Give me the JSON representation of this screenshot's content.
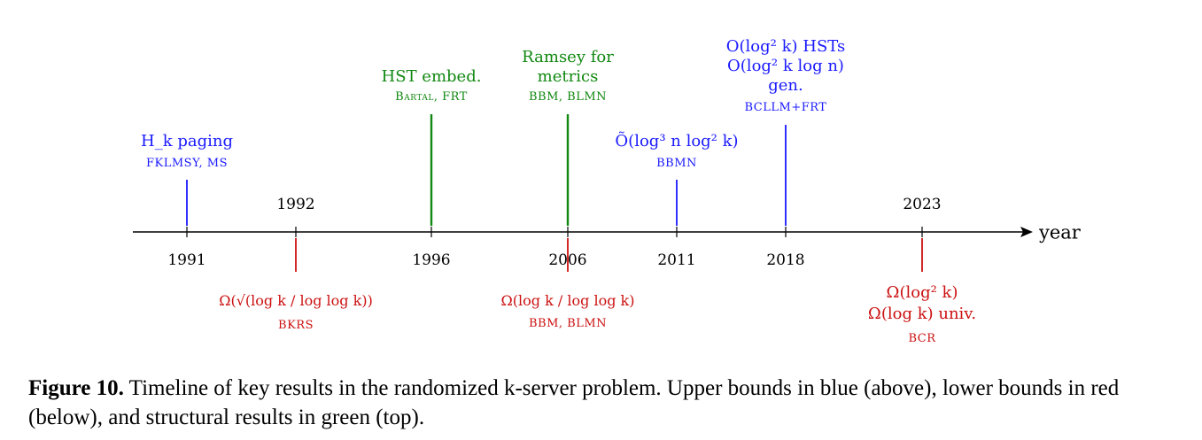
{
  "axis": {
    "label": "year",
    "ticks": [
      {
        "year": 1991,
        "label": "1991",
        "above": false
      },
      {
        "year": 1992,
        "label": "1992",
        "above": true
      },
      {
        "year": 1996,
        "label": "1996",
        "above": false
      },
      {
        "year": 2006,
        "label": "2006",
        "above": false
      },
      {
        "year": 2011,
        "label": "2011",
        "above": false
      },
      {
        "year": 2018,
        "label": "2018",
        "above": false
      },
      {
        "year": 2023,
        "label": "2023",
        "above": true
      }
    ]
  },
  "colors": {
    "upper": "#1a1aff",
    "lower": "#cc1111",
    "structural": "#118811"
  },
  "upper_bounds": [
    {
      "year": 1991,
      "result": "H_k paging",
      "refs": "FKLMSY, MS"
    },
    {
      "year": 2011,
      "result": "Õ(log³ n log² k)",
      "refs": "BBMN"
    },
    {
      "year": 2018,
      "result_lines": [
        "O(log² k) HSTs",
        "O(log² k log n)",
        "gen."
      ],
      "refs": "BCLLM+FRT"
    }
  ],
  "lower_bounds": [
    {
      "year": 1992,
      "result": "Ω(√(log k / log log k))",
      "refs": "BKRS"
    },
    {
      "year": 2006,
      "result": "Ω(log k / log log k)",
      "refs": "BBM, BLMN"
    },
    {
      "year": 2023,
      "result_lines": [
        "Ω(log² k)",
        "Ω(log k) univ."
      ],
      "refs": "BCR"
    }
  ],
  "structural": [
    {
      "year": 1996,
      "result": "HST embed.",
      "refs": "Bartal, FRT"
    },
    {
      "year": 2006,
      "result_lines": [
        "Ramsey for",
        "metrics"
      ],
      "refs": "BBM, BLMN"
    }
  ],
  "caption": {
    "label": "Figure 10.",
    "text": " Timeline of key results in the randomized k-server problem. Upper bounds in blue (above), lower bounds in red (below), and structural results in green (top)."
  }
}
